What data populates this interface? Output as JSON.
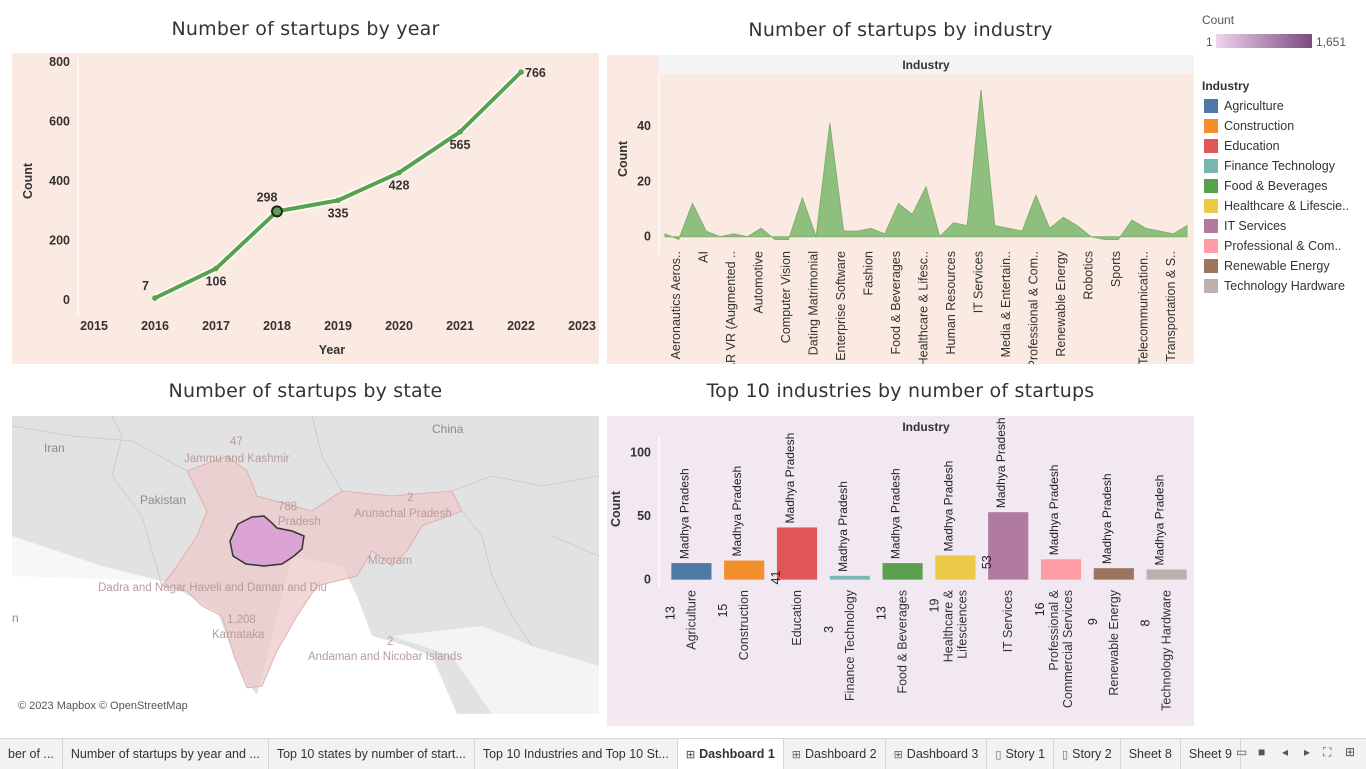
{
  "titles": {
    "year": "Number of startups by year",
    "industry": "Number of startups by industry",
    "state": "Number of startups by state",
    "top10": "Top 10 industries by number of startups"
  },
  "color_legend": {
    "count_label": "Count",
    "min": "1",
    "max": "1,651",
    "gradient_start": "#f0d4ec",
    "gradient_end": "#7a4a80"
  },
  "industry_legend": {
    "title": "Industry",
    "items": [
      {
        "label": "Agriculture",
        "color": "#4e79a7"
      },
      {
        "label": "Construction",
        "color": "#f28e2b"
      },
      {
        "label": "Education",
        "color": "#e15759"
      },
      {
        "label": "Finance Technology",
        "color": "#76b7b2"
      },
      {
        "label": "Food & Beverages",
        "color": "#59a14f"
      },
      {
        "label": "Healthcare & Lifescie..",
        "color": "#edc948"
      },
      {
        "label": "IT Services",
        "color": "#b07aa1"
      },
      {
        "label": "Professional & Com..",
        "color": "#ff9da7"
      },
      {
        "label": "Renewable Energy",
        "color": "#9c755f"
      },
      {
        "label": "Technology Hardware",
        "color": "#bab0ac"
      }
    ]
  },
  "map": {
    "labels": {
      "iran": "Iran",
      "china": "China",
      "pakistan": "Pakistan",
      "jk": "Jammu and Kashmir",
      "jk_count": "47",
      "up_count": "788",
      "pradesh": "Pradesh",
      "arunachal": "Arunachal Pradesh",
      "arunachal_count": "2",
      "mizoram": "Mizoram",
      "dnh": "Dadra and Nagar Haveli and Daman and Diu",
      "karnataka": "Karnataka",
      "karnataka_count": "1,208",
      "andaman": "Andaman and Nicobar Islands",
      "andaman_count": "2",
      "n": "n"
    },
    "attribution": "© 2023 Mapbox © OpenStreetMap"
  },
  "tabs": [
    {
      "label": "ber of ...",
      "icon": "",
      "active": false
    },
    {
      "label": "Number of startups by year and ...",
      "icon": "",
      "active": false
    },
    {
      "label": "Top 10 states by number of start...",
      "icon": "",
      "active": false
    },
    {
      "label": "Top 10 Industries and Top 10 St...",
      "icon": "",
      "active": false
    },
    {
      "label": "Dashboard 1",
      "icon": "dashboard-icon",
      "active": true
    },
    {
      "label": "Dashboard 2",
      "icon": "dashboard-icon",
      "active": false
    },
    {
      "label": "Dashboard 3",
      "icon": "dashboard-icon",
      "active": false
    },
    {
      "label": "Story 1",
      "icon": "story-icon",
      "active": false
    },
    {
      "label": "Story 2",
      "icon": "story-icon",
      "active": false
    },
    {
      "label": "Sheet 8",
      "icon": "",
      "active": false
    },
    {
      "label": "Sheet 9",
      "icon": "",
      "active": false
    }
  ],
  "chart_data": [
    {
      "type": "line",
      "title": "Number of startups by year",
      "xlabel": "Year",
      "ylabel": "Count",
      "x_ticks": [
        "2015",
        "2016",
        "2017",
        "2018",
        "2019",
        "2020",
        "2021",
        "2022",
        "2023"
      ],
      "y_ticks": [
        "0",
        "200",
        "400",
        "600",
        "800"
      ],
      "ylim": [
        -30,
        800
      ],
      "x": [
        2016,
        2017,
        2018,
        2019,
        2020,
        2021,
        2022
      ],
      "values": [
        7,
        106,
        298,
        335,
        428,
        565,
        766
      ],
      "data_labels": [
        "7",
        "106",
        "298",
        "335",
        "428",
        "565",
        "766"
      ],
      "highlighted": 2018,
      "line_color": "#59a14f",
      "background": "#fbeae1"
    },
    {
      "type": "area",
      "title": "Number of startups by industry",
      "header": "Industry",
      "ylabel": "Count",
      "y_ticks": [
        "0",
        "20",
        "40"
      ],
      "ylim": [
        -3,
        57
      ],
      "categories_shown": [
        "Aeronautics Aeros..",
        "AI",
        "AR VR (Augmented ..",
        "Automotive",
        "Computer Vision",
        "Dating Matrimonial",
        "Enterprise Software",
        "Fashion",
        "Food & Beverages",
        "Healthcare & Lifesc..",
        "Human Resources",
        "IT Services",
        "Media & Entertain..",
        "Professional & Com..",
        "Renewable Energy",
        "Robotics",
        "Sports",
        "Telecommunication..",
        "Transportation & S.."
      ],
      "values": [
        1,
        -1,
        12,
        2,
        0,
        1,
        0,
        3,
        -1,
        -1,
        14,
        0,
        41,
        2,
        2,
        3,
        1,
        12,
        8,
        18,
        0,
        5,
        4,
        53,
        4,
        3,
        2,
        15,
        3,
        7,
        4,
        0,
        -1,
        -1,
        6,
        3,
        2,
        1,
        4
      ],
      "fill_color": "#8fbf7e",
      "background": "#fbeae1"
    },
    {
      "type": "bar",
      "title": "Top 10 industries by number of startups",
      "header": "Industry",
      "ylabel": "Count",
      "y_ticks": [
        "0",
        "50",
        "100"
      ],
      "ylim": [
        -5,
        105
      ],
      "categories": [
        "Agriculture",
        "Construction",
        "Education",
        "Finance Technology",
        "Food & Beverages",
        "Healthcare & Lifesciences",
        "IT Services",
        "Professional & Commercial Services",
        "Renewable Energy",
        "Technology Hardware"
      ],
      "category_lines": [
        [
          "Agriculture"
        ],
        [
          "Construction"
        ],
        [
          "Education"
        ],
        [
          "Finance Technology"
        ],
        [
          "Food & Beverages"
        ],
        [
          "Healthcare &",
          "Lifesciences"
        ],
        [
          "IT Services"
        ],
        [
          "Professional &",
          "Commercial Services"
        ],
        [
          "Renewable Energy"
        ],
        [
          "Technology Hardware"
        ]
      ],
      "values": [
        13,
        15,
        41,
        3,
        13,
        19,
        53,
        16,
        9,
        8
      ],
      "state_label": "Madhya Pradesh",
      "colors": [
        "#4e79a7",
        "#f28e2b",
        "#e15759",
        "#76b7b2",
        "#59a14f",
        "#edc948",
        "#b07aa1",
        "#ff9da7",
        "#9c755f",
        "#bab0ac"
      ],
      "background": "#f1e8f1"
    }
  ]
}
